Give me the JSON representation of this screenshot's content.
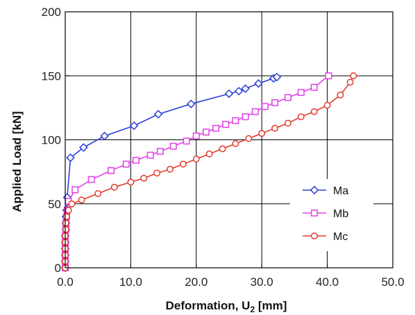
{
  "chart_data": {
    "type": "line",
    "xlabel": "Deformation, U",
    "xlabel_sub": "2",
    "xlabel_unit": " [mm]",
    "ylabel": "Applied Load [kN]",
    "xlim": [
      0,
      50
    ],
    "ylim": [
      0,
      200
    ],
    "xticks": [
      "0.0",
      "10.0",
      "20.0",
      "30.0",
      "40.0",
      "50.0"
    ],
    "yticks": [
      "0",
      "50",
      "100",
      "150",
      "200"
    ],
    "grid": true,
    "legend_position": "center-right",
    "series": [
      {
        "name": "Ma",
        "color": "#2b3fd6",
        "marker": "diamond",
        "points": [
          [
            0,
            0
          ],
          [
            0,
            5
          ],
          [
            0,
            10
          ],
          [
            0,
            15
          ],
          [
            0,
            20
          ],
          [
            0,
            25
          ],
          [
            0.1,
            30
          ],
          [
            0.1,
            35
          ],
          [
            0.1,
            40
          ],
          [
            0.2,
            45
          ],
          [
            0.3,
            55
          ],
          [
            0.8,
            86
          ],
          [
            2.8,
            94
          ],
          [
            6,
            103
          ],
          [
            10.5,
            111
          ],
          [
            14.2,
            120
          ],
          [
            19.2,
            128
          ],
          [
            25,
            136
          ],
          [
            26.5,
            138
          ],
          [
            27.5,
            140
          ],
          [
            29.5,
            144
          ],
          [
            31.8,
            148
          ],
          [
            32.3,
            149
          ]
        ]
      },
      {
        "name": "Mb",
        "color": "#e040e8",
        "marker": "square",
        "points": [
          [
            0,
            0
          ],
          [
            0,
            5
          ],
          [
            0,
            10
          ],
          [
            0,
            15
          ],
          [
            0,
            20
          ],
          [
            0,
            25
          ],
          [
            0.1,
            30
          ],
          [
            0.1,
            35
          ],
          [
            0.2,
            40
          ],
          [
            0.3,
            45
          ],
          [
            0.5,
            52
          ],
          [
            1.5,
            61
          ],
          [
            4,
            69
          ],
          [
            7,
            76
          ],
          [
            9.3,
            81
          ],
          [
            10.8,
            84
          ],
          [
            13,
            88
          ],
          [
            14.5,
            91
          ],
          [
            16.5,
            95
          ],
          [
            18.5,
            99
          ],
          [
            20,
            103
          ],
          [
            21.5,
            106
          ],
          [
            23,
            109
          ],
          [
            24.5,
            112
          ],
          [
            26,
            115
          ],
          [
            27.5,
            118
          ],
          [
            29,
            122
          ],
          [
            30.5,
            126
          ],
          [
            32,
            129
          ],
          [
            34,
            133
          ],
          [
            36,
            137
          ],
          [
            38,
            141
          ],
          [
            40.2,
            150
          ]
        ]
      },
      {
        "name": "Mc",
        "color": "#e23a2c",
        "marker": "circle",
        "points": [
          [
            0,
            0
          ],
          [
            0,
            5
          ],
          [
            0,
            10
          ],
          [
            0,
            15
          ],
          [
            0,
            20
          ],
          [
            0,
            25
          ],
          [
            0.1,
            30
          ],
          [
            0.1,
            35
          ],
          [
            0.2,
            40
          ],
          [
            0.5,
            45
          ],
          [
            1,
            50
          ],
          [
            2.5,
            53
          ],
          [
            5,
            58
          ],
          [
            7.5,
            63
          ],
          [
            10,
            67
          ],
          [
            12,
            70
          ],
          [
            14,
            74
          ],
          [
            16,
            77
          ],
          [
            18,
            81
          ],
          [
            20,
            85
          ],
          [
            22,
            89
          ],
          [
            24,
            93
          ],
          [
            26,
            97
          ],
          [
            28,
            101
          ],
          [
            30,
            105
          ],
          [
            32,
            109
          ],
          [
            34,
            113
          ],
          [
            36,
            118
          ],
          [
            38,
            122
          ],
          [
            40,
            127
          ],
          [
            42,
            135
          ],
          [
            43.5,
            145
          ],
          [
            44,
            150
          ]
        ]
      }
    ]
  }
}
